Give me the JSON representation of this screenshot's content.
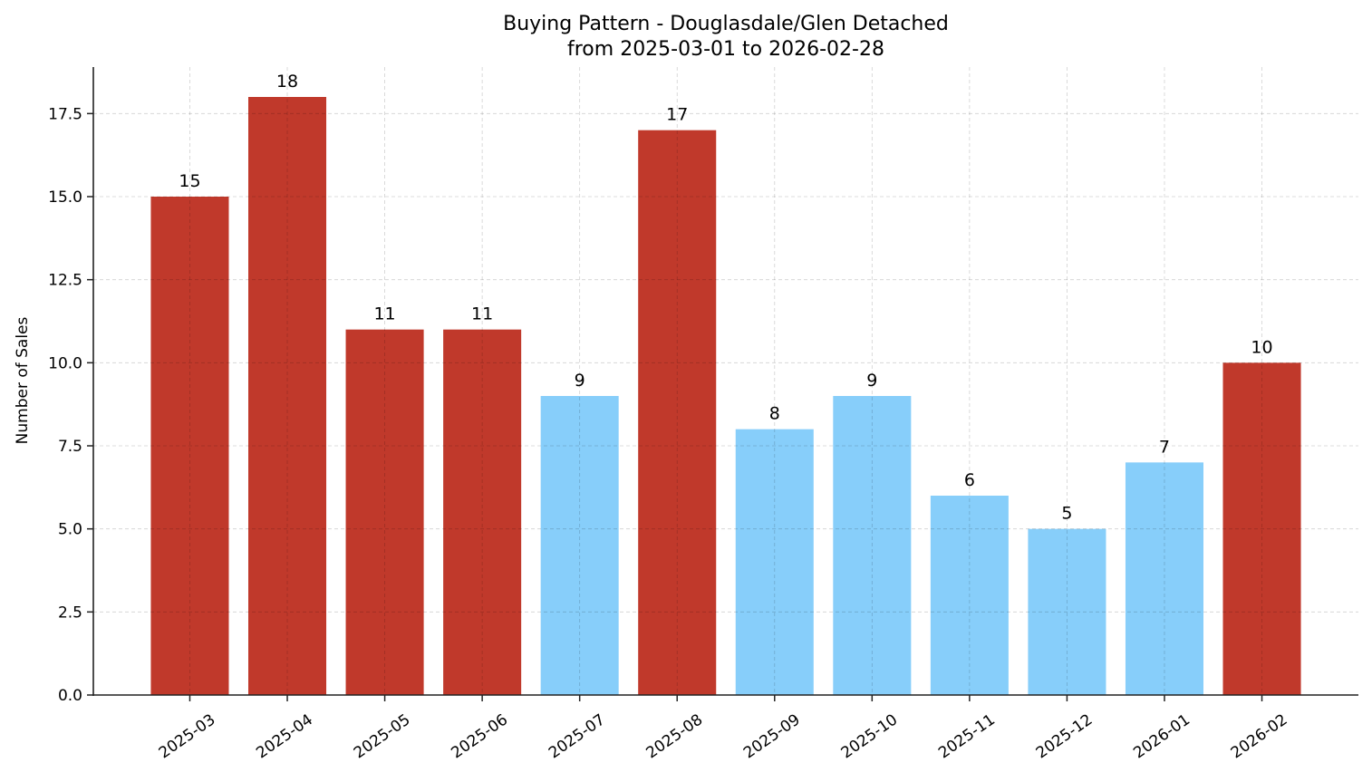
{
  "chart_data": {
    "type": "bar",
    "title": "Buying Pattern - Douglasdale/Glen Detached",
    "subtitle": "from 2025-03-01 to 2026-02-28",
    "xlabel": "",
    "ylabel": "Number of Sales",
    "categories": [
      "2025-03",
      "2025-04",
      "2025-05",
      "2025-06",
      "2025-07",
      "2025-08",
      "2025-09",
      "2025-10",
      "2025-11",
      "2025-12",
      "2026-01",
      "2026-02"
    ],
    "values": [
      15,
      18,
      11,
      11,
      9,
      17,
      8,
      9,
      6,
      5,
      7,
      10
    ],
    "bar_colors": [
      "#c0392b",
      "#c0392b",
      "#c0392b",
      "#c0392b",
      "#87cefa",
      "#c0392b",
      "#87cefa",
      "#87cefa",
      "#87cefa",
      "#87cefa",
      "#87cefa",
      "#c0392b"
    ],
    "ylim": [
      0,
      18.9
    ],
    "yticks": [
      "0.0",
      "2.5",
      "5.0",
      "7.5",
      "10.0",
      "12.5",
      "15.0",
      "17.5"
    ],
    "grid": true,
    "data_labels": true
  }
}
